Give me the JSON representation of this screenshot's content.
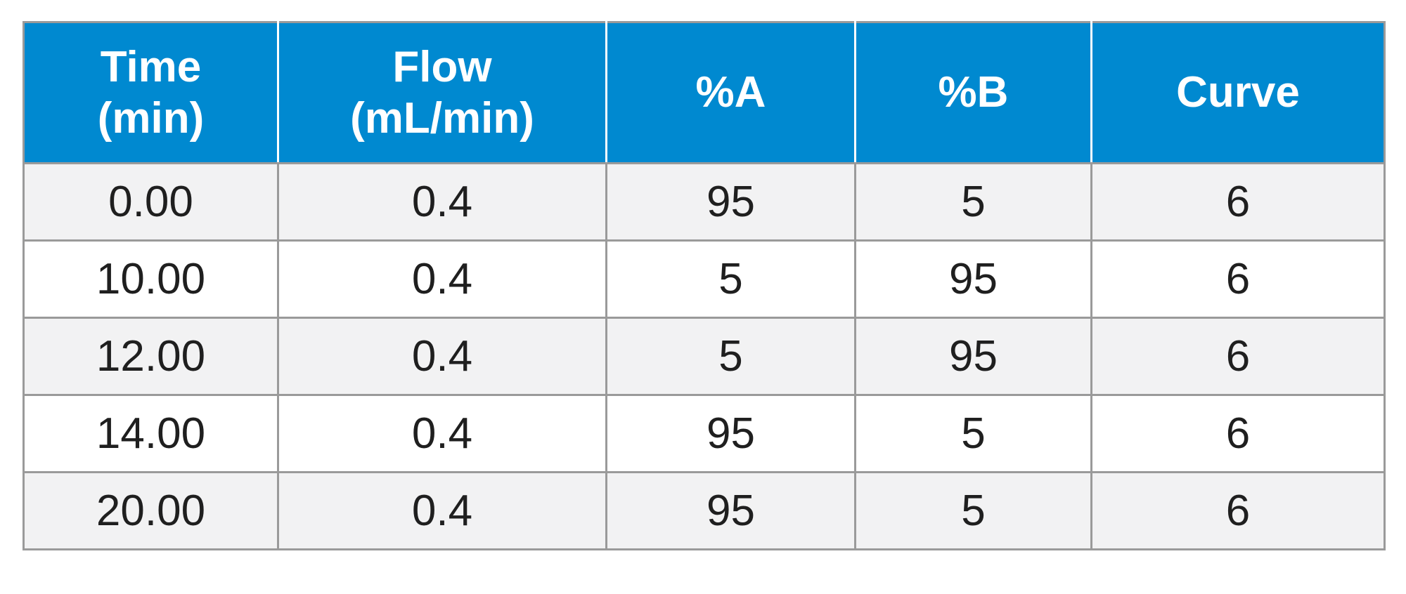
{
  "table": {
    "header": [
      {
        "lines": [
          "Time",
          "(min)"
        ]
      },
      {
        "lines": [
          "Flow",
          "(mL/min)"
        ]
      },
      {
        "lines": [
          "%A"
        ]
      },
      {
        "lines": [
          "%B"
        ]
      },
      {
        "lines": [
          "Curve"
        ]
      }
    ],
    "rows": [
      [
        "0.00",
        "0.4",
        "95",
        "5",
        "6"
      ],
      [
        "10.00",
        "0.4",
        "5",
        "95",
        "6"
      ],
      [
        "12.00",
        "0.4",
        "5",
        "95",
        "6"
      ],
      [
        "14.00",
        "0.4",
        "95",
        "5",
        "6"
      ],
      [
        "20.00",
        "0.4",
        "95",
        "5",
        "6"
      ]
    ],
    "colors": {
      "header_bg": "#0089d0",
      "header_text": "#ffffff",
      "row_alt_bg": "#f2f2f3",
      "row_bg": "#ffffff",
      "border": "#9a9a9a",
      "cell_text": "#1f1f1f"
    }
  }
}
